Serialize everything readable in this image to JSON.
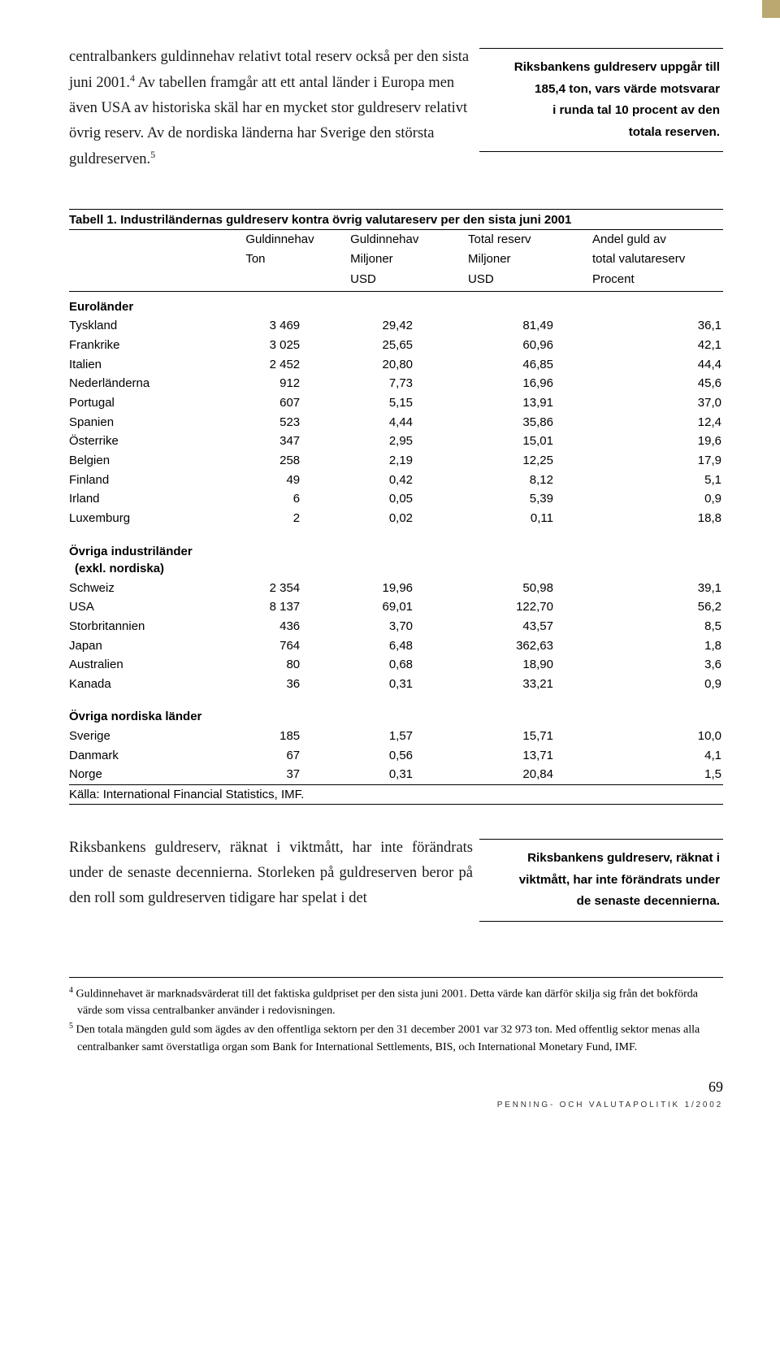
{
  "accent_color": "#b9a86f",
  "para1": {
    "t1": "centralbankers guldinnehav relativt total reserv också per den sista juni 2001.",
    "s1": "4",
    "t2": " Av tabellen framgår att ett antal länder i Europa men även USA av historiska skäl har en mycket stor guldreserv relativt övrig reserv. Av de nordiska länderna har Sverige den största guldreserven.",
    "s2": "5"
  },
  "sidebar1": {
    "l1": "Riksbankens guldreserv uppgår till",
    "l2": "185,4 ton, vars värde motsvarar",
    "l3": "i runda tal 10 procent av den",
    "l4": "totala reserven."
  },
  "table": {
    "title": "Tabell 1. Industriländernas guldreserv kontra övrig valutareserv per den sista juni 2001",
    "headers": {
      "c1a": "Guldinnehav",
      "c1b": "Ton",
      "c2a": "Guldinnehav",
      "c2b": "Miljoner",
      "c2c": "USD",
      "c3a": "Total reserv",
      "c3b": "Miljoner",
      "c3c": "USD",
      "c4a": "Andel guld av",
      "c4b": "total valutareserv",
      "c4c": "Procent"
    },
    "section1": "Euroländer",
    "rows1": [
      {
        "label": "Tyskland",
        "v1": "3 469",
        "v2": "29,42",
        "v3": "81,49",
        "v4": "36,1"
      },
      {
        "label": "Frankrike",
        "v1": "3 025",
        "v2": "25,65",
        "v3": "60,96",
        "v4": "42,1"
      },
      {
        "label": "Italien",
        "v1": "2 452",
        "v2": "20,80",
        "v3": "46,85",
        "v4": "44,4"
      },
      {
        "label": "Nederländerna",
        "v1": "912",
        "v2": "7,73",
        "v3": "16,96",
        "v4": "45,6"
      },
      {
        "label": "Portugal",
        "v1": "607",
        "v2": "5,15",
        "v3": "13,91",
        "v4": "37,0"
      },
      {
        "label": "Spanien",
        "v1": "523",
        "v2": "4,44",
        "v3": "35,86",
        "v4": "12,4"
      },
      {
        "label": "Österrike",
        "v1": "347",
        "v2": "2,95",
        "v3": "15,01",
        "v4": "19,6"
      },
      {
        "label": "Belgien",
        "v1": "258",
        "v2": "2,19",
        "v3": "12,25",
        "v4": "17,9"
      },
      {
        "label": "Finland",
        "v1": "49",
        "v2": "0,42",
        "v3": "8,12",
        "v4": "5,1"
      },
      {
        "label": "Irland",
        "v1": "6",
        "v2": "0,05",
        "v3": "5,39",
        "v4": "0,9"
      },
      {
        "label": "Luxemburg",
        "v1": "2",
        "v2": "0,02",
        "v3": "0,11",
        "v4": "18,8"
      }
    ],
    "section2a": "Övriga industriländer",
    "section2b": "(exkl. nordiska)",
    "rows2": [
      {
        "label": "Schweiz",
        "v1": "2 354",
        "v2": "19,96",
        "v3": "50,98",
        "v4": "39,1"
      },
      {
        "label": "USA",
        "v1": "8 137",
        "v2": "69,01",
        "v3": "122,70",
        "v4": "56,2"
      },
      {
        "label": "Storbritannien",
        "v1": "436",
        "v2": "3,70",
        "v3": "43,57",
        "v4": "8,5"
      },
      {
        "label": "Japan",
        "v1": "764",
        "v2": "6,48",
        "v3": "362,63",
        "v4": "1,8"
      },
      {
        "label": "Australien",
        "v1": "80",
        "v2": "0,68",
        "v3": "18,90",
        "v4": "3,6"
      },
      {
        "label": "Kanada",
        "v1": "36",
        "v2": "0,31",
        "v3": "33,21",
        "v4": "0,9"
      }
    ],
    "section3": "Övriga nordiska länder",
    "rows3": [
      {
        "label": "Sverige",
        "v1": "185",
        "v2": "1,57",
        "v3": "15,71",
        "v4": "10,0"
      },
      {
        "label": "Danmark",
        "v1": "67",
        "v2": "0,56",
        "v3": "13,71",
        "v4": "4,1"
      },
      {
        "label": "Norge",
        "v1": "37",
        "v2": "0,31",
        "v3": "20,84",
        "v4": "1,5"
      }
    ],
    "source": "Källa: International Financial Statistics, IMF."
  },
  "para2": "Riksbankens guldreserv, räknat i viktmått, har inte förändrats under de senaste decennierna. Storleken på guldreserven beror på den roll som guldreserven tidigare har spelat i det",
  "sidebar2": {
    "l1": "Riksbankens guldreserv, räknat i",
    "l2": "viktmått, har inte förändrats under",
    "l3": "de senaste decennierna."
  },
  "footnotes": {
    "f4s": "4",
    "f4": " Guldinnehavet är marknadsvärderat till det faktiska guldpriset per den sista juni 2001. Detta värde kan därför skilja sig från det bokförda värde som vissa centralbanker använder i redovisningen.",
    "f5s": "5",
    "f5": " Den totala mängden guld som ägdes av den offentliga sektorn per den 31 december 2001 var 32 973 ton. Med offentlig sektor menas alla centralbanker samt överstatliga organ som Bank for International Settlements, BIS, och International Monetary Fund, IMF."
  },
  "page_number": "69",
  "footer": "PENNING- OCH VALUTAPOLITIK 1/2002"
}
